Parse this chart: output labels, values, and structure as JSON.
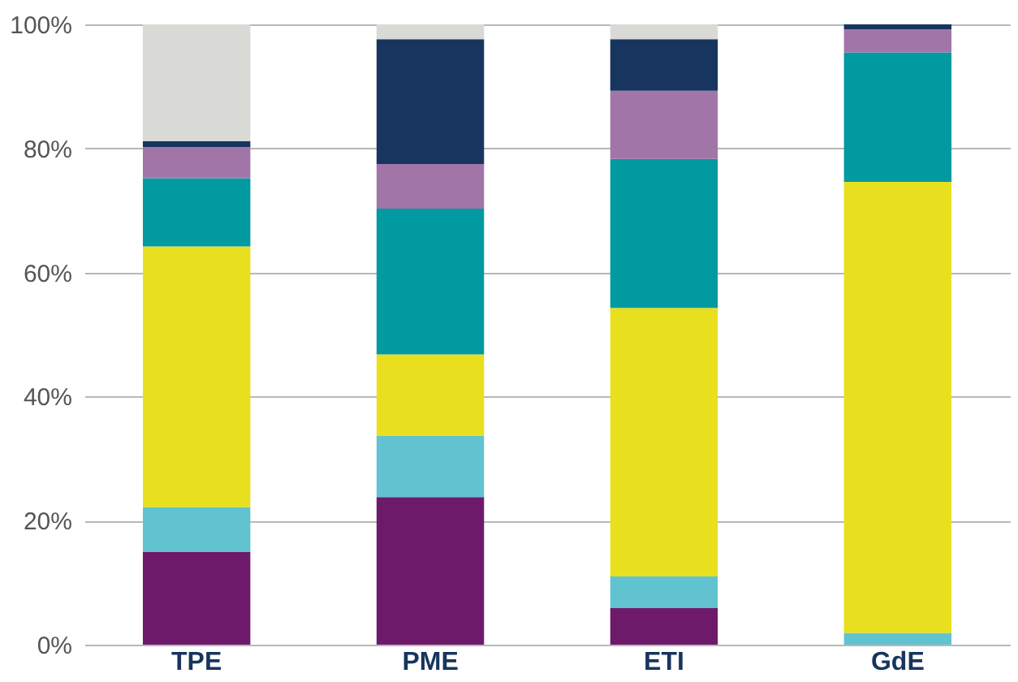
{
  "chart_data": {
    "type": "bar",
    "stacked": true,
    "categories": [
      "TPE",
      "PME",
      "ETI",
      "GdE"
    ],
    "series": [
      {
        "color": "#6d1a6b",
        "values": [
          15,
          23.8,
          5.9,
          0
        ]
      },
      {
        "color": "#62c3d0",
        "values": [
          7.2,
          9.9,
          5.1,
          1.9
        ]
      },
      {
        "color": "#e8e01e",
        "values": [
          42,
          13.1,
          43.3,
          72.7
        ]
      },
      {
        "color": "#009aa0",
        "values": [
          11,
          23.5,
          24,
          20.9
        ]
      },
      {
        "color": "#a275a8",
        "values": [
          5,
          7.2,
          11,
          3.7
        ]
      },
      {
        "color": "#17355e",
        "values": [
          1,
          20.1,
          8.3,
          0.8
        ]
      },
      {
        "color": "#d9d9d6",
        "values": [
          18.8,
          2.4,
          2.4,
          0
        ]
      }
    ],
    "ylim": [
      0,
      100
    ],
    "yticks": [
      {
        "value": 0,
        "label": "0%"
      },
      {
        "value": 20,
        "label": "20%"
      },
      {
        "value": 40,
        "label": "40%"
      },
      {
        "value": 60,
        "label": "60%"
      },
      {
        "value": 80,
        "label": "80%"
      },
      {
        "value": 100,
        "label": "100%"
      }
    ],
    "grid": "y",
    "legend": false
  }
}
